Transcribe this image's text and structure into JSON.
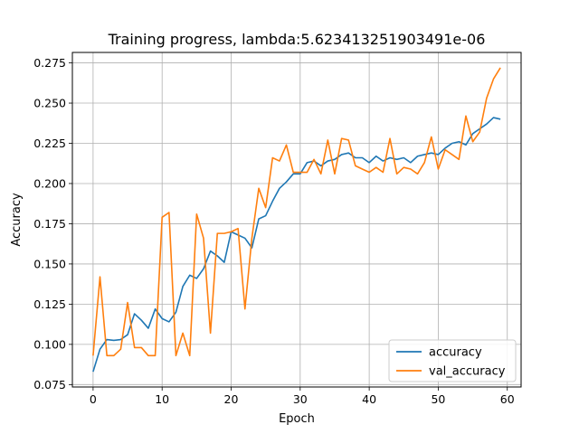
{
  "chart_data": {
    "type": "line",
    "title": "Training progress, lambda:5.623413251903491e-06",
    "xlabel": "Epoch",
    "ylabel": "Accuracy",
    "xlim": [
      -3,
      62
    ],
    "ylim": [
      0.0735,
      0.2815
    ],
    "xticks": [
      0,
      10,
      20,
      30,
      40,
      50,
      60
    ],
    "yticks": [
      0.075,
      0.1,
      0.125,
      0.15,
      0.175,
      0.2,
      0.225,
      0.25,
      0.275
    ],
    "ytick_labels": [
      "0.075",
      "0.100",
      "0.125",
      "0.150",
      "0.175",
      "0.200",
      "0.225",
      "0.250",
      "0.275"
    ],
    "grid": true,
    "legend_position": "lower-right",
    "series": [
      {
        "name": "accuracy",
        "color": "#1f77b4",
        "x": [
          0,
          1,
          2,
          3,
          4,
          5,
          6,
          7,
          8,
          9,
          10,
          11,
          12,
          13,
          14,
          15,
          16,
          17,
          18,
          19,
          20,
          21,
          22,
          23,
          24,
          25,
          26,
          27,
          28,
          29,
          30,
          31,
          32,
          33,
          34,
          35,
          36,
          37,
          38,
          39,
          40,
          41,
          42,
          43,
          44,
          45,
          46,
          47,
          48,
          49,
          50,
          51,
          52,
          53,
          54,
          55,
          56,
          57,
          58,
          59
        ],
        "values": [
          0.083,
          0.097,
          0.103,
          0.1025,
          0.103,
          0.106,
          0.119,
          0.115,
          0.11,
          0.122,
          0.116,
          0.114,
          0.12,
          0.136,
          0.143,
          0.141,
          0.147,
          0.158,
          0.155,
          0.151,
          0.17,
          0.168,
          0.166,
          0.16,
          0.178,
          0.18,
          0.189,
          0.197,
          0.201,
          0.206,
          0.206,
          0.213,
          0.214,
          0.211,
          0.214,
          0.215,
          0.218,
          0.219,
          0.216,
          0.216,
          0.213,
          0.217,
          0.214,
          0.216,
          0.215,
          0.216,
          0.213,
          0.217,
          0.218,
          0.219,
          0.218,
          0.222,
          0.225,
          0.226,
          0.224,
          0.231,
          0.234,
          0.237,
          0.241,
          0.24
        ]
      },
      {
        "name": "val_accuracy",
        "color": "#ff7f0e",
        "x": [
          0,
          1,
          2,
          3,
          4,
          5,
          6,
          7,
          8,
          9,
          10,
          11,
          12,
          13,
          14,
          15,
          16,
          17,
          18,
          19,
          20,
          21,
          22,
          23,
          24,
          25,
          26,
          27,
          28,
          29,
          30,
          31,
          32,
          33,
          34,
          35,
          36,
          37,
          38,
          39,
          40,
          41,
          42,
          43,
          44,
          45,
          46,
          47,
          48,
          49,
          50,
          51,
          52,
          53,
          54,
          55,
          56,
          57,
          58,
          59
        ],
        "values": [
          0.093,
          0.142,
          0.093,
          0.093,
          0.097,
          0.126,
          0.098,
          0.098,
          0.093,
          0.093,
          0.179,
          0.182,
          0.093,
          0.107,
          0.093,
          0.181,
          0.166,
          0.107,
          0.169,
          0.169,
          0.17,
          0.172,
          0.122,
          0.166,
          0.197,
          0.185,
          0.216,
          0.214,
          0.224,
          0.207,
          0.207,
          0.207,
          0.215,
          0.206,
          0.227,
          0.206,
          0.228,
          0.227,
          0.211,
          0.209,
          0.207,
          0.21,
          0.207,
          0.228,
          0.206,
          0.21,
          0.209,
          0.206,
          0.213,
          0.229,
          0.209,
          0.221,
          0.218,
          0.215,
          0.242,
          0.226,
          0.232,
          0.253,
          0.265,
          0.272
        ]
      }
    ]
  }
}
